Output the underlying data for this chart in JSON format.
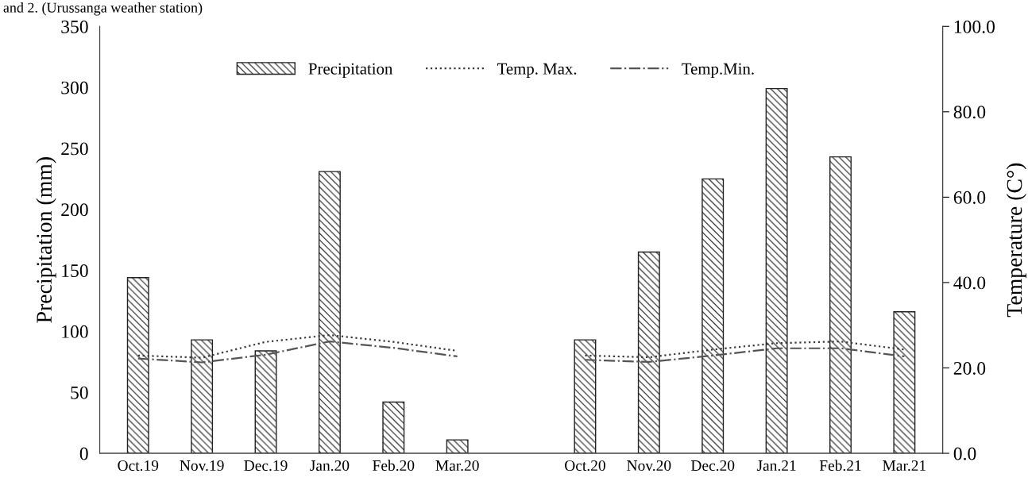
{
  "chart_data": {
    "type": "bar",
    "annotations": [
      "and 2. (Urussanga weather station)"
    ],
    "categories": [
      "Oct.19",
      "Nov.19",
      "Dec.19",
      "Jan.20",
      "Feb.20",
      "Mar.20",
      null,
      "Oct.20",
      "Nov.20",
      "Dec.20",
      "Jan.21",
      "Feb.21",
      "Mar.21"
    ],
    "ylabel": "Precipitation (mm)",
    "y2label": "Temperature (C°)",
    "ylim": [
      0,
      350
    ],
    "yticks": [
      0,
      50,
      100,
      150,
      200,
      250,
      300,
      350
    ],
    "y2lim": [
      0,
      100
    ],
    "y2ticks": [
      {
        "value": 0,
        "label": "0.0"
      },
      {
        "value": 20,
        "label": "20.0"
      },
      {
        "value": 40,
        "label": "40.0"
      },
      {
        "value": 60,
        "label": "60.0"
      },
      {
        "value": 80,
        "label": "80.0"
      },
      {
        "value": 100,
        "label": "100.0"
      }
    ],
    "legend": "top",
    "grid": false,
    "series": [
      {
        "name": "Precipitation",
        "color": "#222222",
        "values": [
          144,
          93,
          84,
          231,
          42,
          11,
          null,
          93,
          165,
          225,
          299,
          243,
          116
        ]
      },
      {
        "name": "Temp. Max.",
        "type": "line",
        "axis": "y2",
        "color": "#3a3a3a",
        "line_style": "dotted",
        "values": [
          22.9,
          22.4,
          26.1,
          27.7,
          26.1,
          24.0,
          null,
          22.9,
          22.5,
          24.3,
          25.8,
          26.2,
          24.3
        ]
      },
      {
        "name": "Temp.Min.",
        "type": "line",
        "axis": "y2",
        "color": "#555555",
        "line_style": "dashdot",
        "values": [
          22.2,
          21.3,
          23.1,
          26.2,
          24.7,
          22.7,
          null,
          21.9,
          21.4,
          22.9,
          24.6,
          24.6,
          22.7
        ]
      }
    ]
  }
}
